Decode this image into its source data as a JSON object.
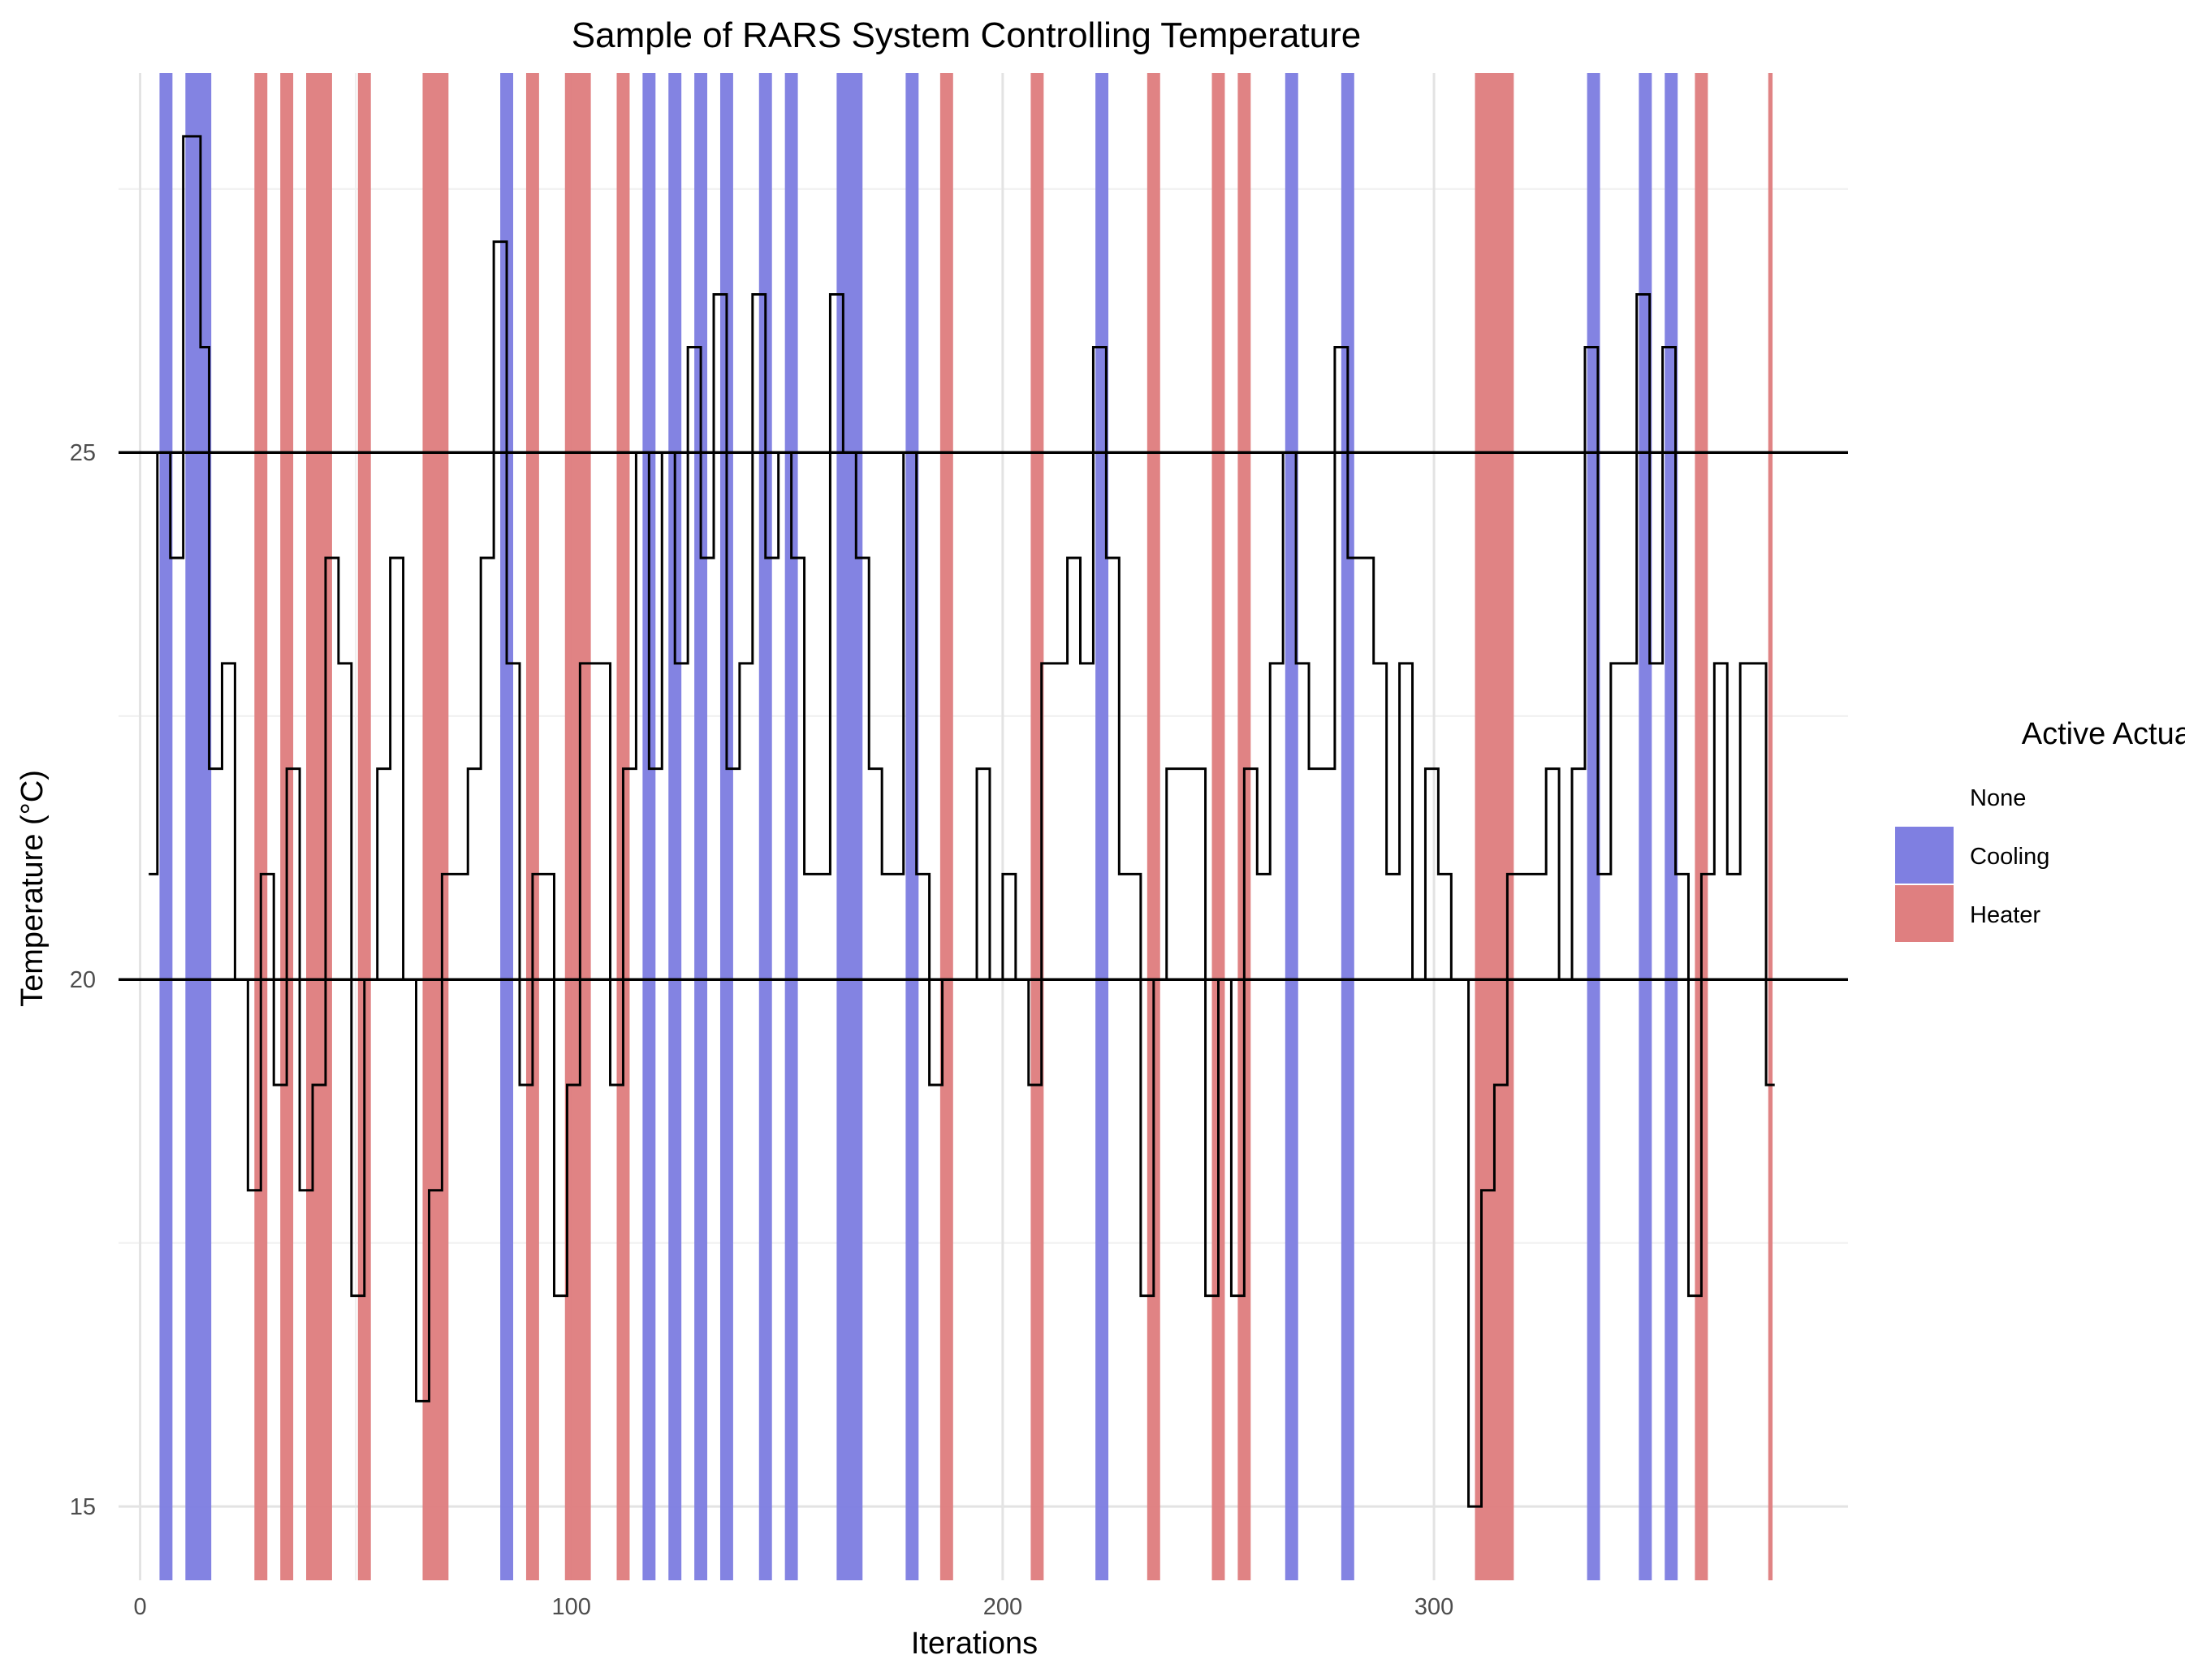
{
  "chart_data": {
    "type": "line",
    "title": "Sample of RARS System Controlling Temperature",
    "xlabel": "Iterations",
    "ylabel": "Temperature (°C)",
    "xlim": [
      -5,
      396
    ],
    "ylim": [
      14.3,
      28.6
    ],
    "x_ticks": [
      0,
      100,
      200,
      300
    ],
    "y_ticks": [
      15,
      20,
      25
    ],
    "x_minor_ticks": [
      50,
      150,
      250,
      350
    ],
    "y_minor_ticks": [
      17.5,
      22.5,
      27.5
    ],
    "reference_lines": [
      20,
      25
    ],
    "legend": {
      "title": "Active Actuators",
      "position": "right",
      "entries": [
        {
          "label": "None",
          "color": "#ffffff"
        },
        {
          "label": "Cooling",
          "color": "#7f7fe1"
        },
        {
          "label": "Heater",
          "color": "#df7f80"
        }
      ]
    },
    "series": [
      {
        "name": "Temperature",
        "color": "#000000",
        "steps": [
          [
            2,
            21
          ],
          [
            4,
            25
          ],
          [
            7,
            24
          ],
          [
            10,
            28
          ],
          [
            14,
            26
          ],
          [
            16,
            22
          ],
          [
            19,
            23
          ],
          [
            22,
            20
          ],
          [
            25,
            18
          ],
          [
            28,
            21
          ],
          [
            31,
            19
          ],
          [
            34,
            22
          ],
          [
            37,
            18
          ],
          [
            40,
            19
          ],
          [
            43,
            24
          ],
          [
            46,
            23
          ],
          [
            49,
            17
          ],
          [
            52,
            20
          ],
          [
            55,
            22
          ],
          [
            58,
            24
          ],
          [
            61,
            20
          ],
          [
            64,
            16
          ],
          [
            67,
            18
          ],
          [
            70,
            21
          ],
          [
            76,
            22
          ],
          [
            79,
            24
          ],
          [
            82,
            27
          ],
          [
            85,
            23
          ],
          [
            88,
            19
          ],
          [
            91,
            21
          ],
          [
            96,
            17
          ],
          [
            99,
            19
          ],
          [
            102,
            23
          ],
          [
            109,
            19
          ],
          [
            112,
            22
          ],
          [
            115,
            25
          ],
          [
            118,
            22
          ],
          [
            121,
            25
          ],
          [
            124,
            23
          ],
          [
            127,
            26
          ],
          [
            130,
            24
          ],
          [
            133,
            26.5
          ],
          [
            136,
            22
          ],
          [
            139,
            23
          ],
          [
            142,
            26.5
          ],
          [
            145,
            24
          ],
          [
            148,
            25
          ],
          [
            151,
            24
          ],
          [
            154,
            21
          ],
          [
            160,
            26.5
          ],
          [
            163,
            25
          ],
          [
            166,
            24
          ],
          [
            169,
            22
          ],
          [
            172,
            21
          ],
          [
            177,
            25
          ],
          [
            180,
            21
          ],
          [
            183,
            19
          ],
          [
            186,
            20
          ],
          [
            194,
            22
          ],
          [
            197,
            20
          ],
          [
            200,
            21
          ],
          [
            203,
            20
          ],
          [
            206,
            19
          ],
          [
            209,
            23
          ],
          [
            215,
            24
          ],
          [
            218,
            23
          ],
          [
            221,
            26
          ],
          [
            224,
            24
          ],
          [
            227,
            21
          ],
          [
            232,
            17
          ],
          [
            235,
            20
          ],
          [
            238,
            22
          ],
          [
            247,
            17
          ],
          [
            250,
            20
          ],
          [
            253,
            17
          ],
          [
            256,
            22
          ],
          [
            259,
            21
          ],
          [
            262,
            23
          ],
          [
            265,
            25
          ],
          [
            268,
            23
          ],
          [
            271,
            22
          ],
          [
            277,
            26
          ],
          [
            280,
            24
          ],
          [
            286,
            23
          ],
          [
            289,
            21
          ],
          [
            292,
            23
          ],
          [
            295,
            20
          ],
          [
            298,
            22
          ],
          [
            301,
            21
          ],
          [
            304,
            20
          ],
          [
            308,
            15
          ],
          [
            311,
            18
          ],
          [
            314,
            19
          ],
          [
            317,
            21
          ],
          [
            326,
            22
          ],
          [
            329,
            20
          ],
          [
            332,
            22
          ],
          [
            335,
            26
          ],
          [
            338,
            21
          ],
          [
            341,
            23
          ],
          [
            347,
            26.5
          ],
          [
            350,
            23
          ],
          [
            353,
            26
          ],
          [
            356,
            21
          ],
          [
            359,
            17
          ],
          [
            362,
            21
          ],
          [
            365,
            23
          ],
          [
            368,
            21
          ],
          [
            371,
            23
          ],
          [
            377,
            19
          ],
          [
            379,
            19
          ]
        ]
      }
    ],
    "actuator_bands": [
      {
        "type": "Cooling",
        "start": 4.5,
        "end": 7.5
      },
      {
        "type": "Cooling",
        "start": 10.5,
        "end": 16.5
      },
      {
        "type": "Heater",
        "start": 26.5,
        "end": 29.5
      },
      {
        "type": "Heater",
        "start": 32.5,
        "end": 35.5
      },
      {
        "type": "Heater",
        "start": 38.5,
        "end": 44.5
      },
      {
        "type": "Heater",
        "start": 50.5,
        "end": 53.5
      },
      {
        "type": "Heater",
        "start": 65.5,
        "end": 71.5
      },
      {
        "type": "Cooling",
        "start": 83.5,
        "end": 86.5
      },
      {
        "type": "Heater",
        "start": 89.5,
        "end": 92.5
      },
      {
        "type": "Heater",
        "start": 98.5,
        "end": 104.5
      },
      {
        "type": "Heater",
        "start": 110.5,
        "end": 113.5
      },
      {
        "type": "Cooling",
        "start": 116.5,
        "end": 119.5
      },
      {
        "type": "Cooling",
        "start": 122.5,
        "end": 125.5
      },
      {
        "type": "Cooling",
        "start": 128.5,
        "end": 131.5
      },
      {
        "type": "Cooling",
        "start": 134.5,
        "end": 137.5
      },
      {
        "type": "Cooling",
        "start": 143.5,
        "end": 146.5
      },
      {
        "type": "Cooling",
        "start": 149.5,
        "end": 152.5
      },
      {
        "type": "Cooling",
        "start": 161.5,
        "end": 167.5
      },
      {
        "type": "Cooling",
        "start": 177.5,
        "end": 180.5
      },
      {
        "type": "Heater",
        "start": 185.5,
        "end": 188.5
      },
      {
        "type": "Heater",
        "start": 206.5,
        "end": 209.5
      },
      {
        "type": "Cooling",
        "start": 221.5,
        "end": 224.5
      },
      {
        "type": "Heater",
        "start": 233.5,
        "end": 236.5
      },
      {
        "type": "Heater",
        "start": 248.5,
        "end": 251.5
      },
      {
        "type": "Heater",
        "start": 254.5,
        "end": 257.5
      },
      {
        "type": "Cooling",
        "start": 265.5,
        "end": 268.5
      },
      {
        "type": "Cooling",
        "start": 278.5,
        "end": 281.5
      },
      {
        "type": "Heater",
        "start": 309.5,
        "end": 318.5
      },
      {
        "type": "Cooling",
        "start": 335.5,
        "end": 338.5
      },
      {
        "type": "Cooling",
        "start": 347.5,
        "end": 350.5
      },
      {
        "type": "Cooling",
        "start": 353.5,
        "end": 356.5
      },
      {
        "type": "Heater",
        "start": 360.5,
        "end": 363.5
      },
      {
        "type": "Heater",
        "start": 377.5,
        "end": 378.5
      }
    ]
  }
}
